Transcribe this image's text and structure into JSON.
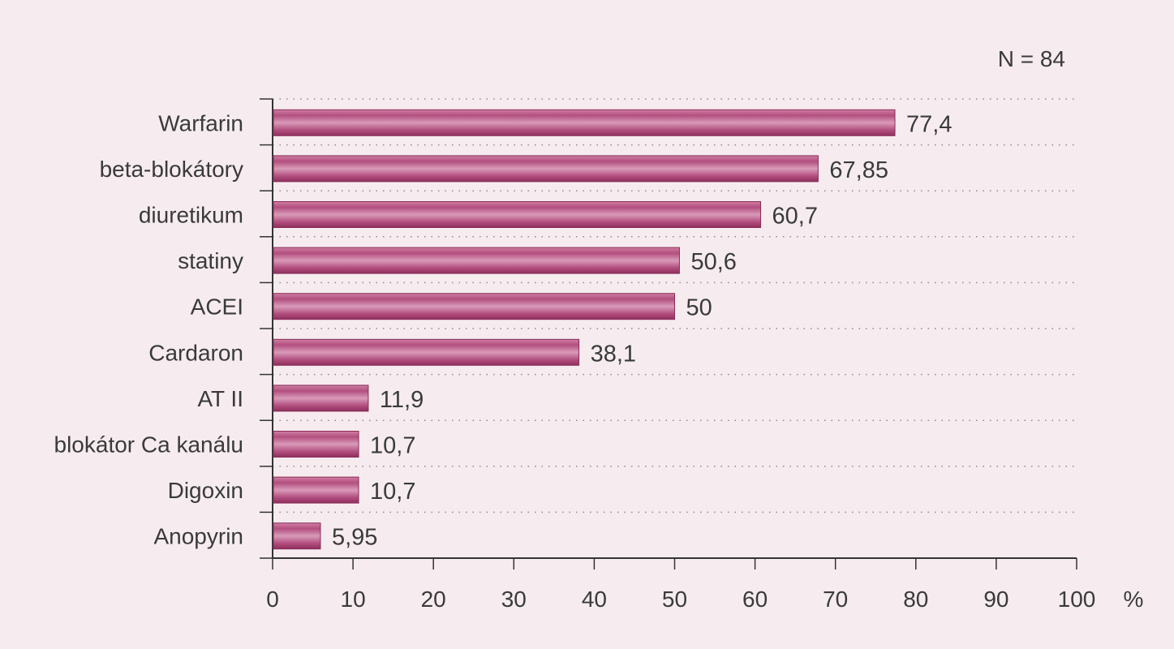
{
  "annotation": "N = 84",
  "chart_data": {
    "type": "bar",
    "orientation": "horizontal",
    "categories": [
      "Warfarin",
      "beta-blokátory",
      "diuretikum",
      "statiny",
      "ACEI",
      "Cardaron",
      "AT II",
      "blokátor Ca kanálu",
      "Digoxin",
      "Anopyrin"
    ],
    "values": [
      77.4,
      67.85,
      60.7,
      50.6,
      50,
      38.1,
      11.9,
      10.7,
      10.7,
      5.95
    ],
    "value_labels": [
      "77,4",
      "67,85",
      "60,7",
      "50,6",
      "50",
      "38,1",
      "11,9",
      "10,7",
      "10,7",
      "5,95"
    ],
    "x_ticks": [
      0,
      10,
      20,
      30,
      40,
      50,
      60,
      70,
      80,
      90,
      100
    ],
    "x_unit": "%",
    "xlim": [
      0,
      100
    ],
    "grid": "dotted horizontal",
    "bar_color": "#a8406f",
    "title": "",
    "xlabel": "",
    "ylabel": ""
  }
}
